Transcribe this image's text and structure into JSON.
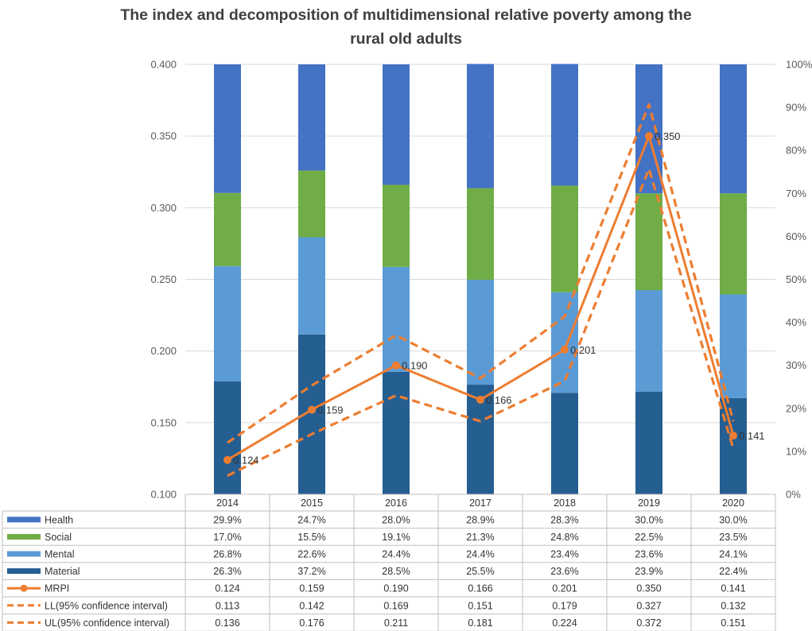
{
  "chart_data": {
    "type": "bar",
    "title_lines": [
      "The index and decomposition of  multidimensional relative poverty among the",
      "rural old adults"
    ],
    "categories": [
      "2014",
      "2015",
      "2016",
      "2017",
      "2018",
      "2019",
      "2020"
    ],
    "left_axis": {
      "ylim": [
        0.1,
        0.4
      ],
      "ticks": [
        "0.100",
        "0.150",
        "0.200",
        "0.250",
        "0.300",
        "0.350",
        "0.400"
      ],
      "tick_values": [
        0.1,
        0.15,
        0.2,
        0.25,
        0.3,
        0.35,
        0.4
      ]
    },
    "right_axis": {
      "ylim": [
        0,
        100
      ],
      "ticks": [
        "0%",
        "10%",
        "20%",
        "30%",
        "40%",
        "50%",
        "60%",
        "70%",
        "80%",
        "90%",
        "100%"
      ],
      "tick_values": [
        0,
        10,
        20,
        30,
        40,
        50,
        60,
        70,
        80,
        90,
        100
      ]
    },
    "bar_series": [
      {
        "name": "Health",
        "color": "#4472C4",
        "values": [
          29.9,
          24.7,
          28.0,
          28.9,
          28.3,
          30.0,
          30.0
        ],
        "labels": [
          "29.9%",
          "24.7%",
          "28.0%",
          "28.9%",
          "28.3%",
          "30.0%",
          "30.0%"
        ]
      },
      {
        "name": "Social",
        "color": "#70AD47",
        "values": [
          17.0,
          15.5,
          19.1,
          21.3,
          24.8,
          22.5,
          23.5
        ],
        "labels": [
          "17.0%",
          "15.5%",
          "19.1%",
          "21.3%",
          "24.8%",
          "22.5%",
          "23.5%"
        ]
      },
      {
        "name": "Mental",
        "color": "#5B9BD5",
        "values": [
          26.8,
          22.6,
          24.4,
          24.4,
          23.4,
          23.6,
          24.1
        ],
        "labels": [
          "26.8%",
          "22.6%",
          "24.4%",
          "24.4%",
          "23.4%",
          "23.6%",
          "24.1%"
        ]
      },
      {
        "name": "Material",
        "color": "#255E91",
        "values": [
          26.3,
          37.2,
          28.5,
          25.5,
          23.6,
          23.9,
          22.4
        ],
        "labels": [
          "26.3%",
          "37.2%",
          "28.5%",
          "25.5%",
          "23.6%",
          "23.9%",
          "22.4%"
        ]
      }
    ],
    "line_series": [
      {
        "name": "MRPI",
        "color": "#ED7D31",
        "style": "solid-marker",
        "values": [
          0.124,
          0.159,
          0.19,
          0.166,
          0.201,
          0.35,
          0.141
        ],
        "labels": [
          "0.124",
          "0.159",
          "0.190",
          "0.166",
          "0.201",
          "0.350",
          "0.141"
        ]
      },
      {
        "name": "LL(95% confidence interval)",
        "color": "#ED7D31",
        "style": "dashed",
        "values": [
          0.113,
          0.142,
          0.169,
          0.151,
          0.179,
          0.327,
          0.132
        ],
        "labels": [
          "0.113",
          "0.142",
          "0.169",
          "0.151",
          "0.179",
          "0.327",
          "0.132"
        ]
      },
      {
        "name": "UL(95% confidence interval)",
        "color": "#ED7D31",
        "style": "dashed",
        "values": [
          0.136,
          0.176,
          0.211,
          0.181,
          0.224,
          0.372,
          0.151
        ],
        "labels": [
          "0.136",
          "0.176",
          "0.211",
          "0.181",
          "0.224",
          "0.372",
          "0.151"
        ]
      }
    ],
    "data_labels": [
      "0.124",
      "0.159",
      "0.190",
      "0.166",
      "0.201",
      "0.350",
      "0.141"
    ],
    "grid": true,
    "legend": "data-table-bottom"
  }
}
